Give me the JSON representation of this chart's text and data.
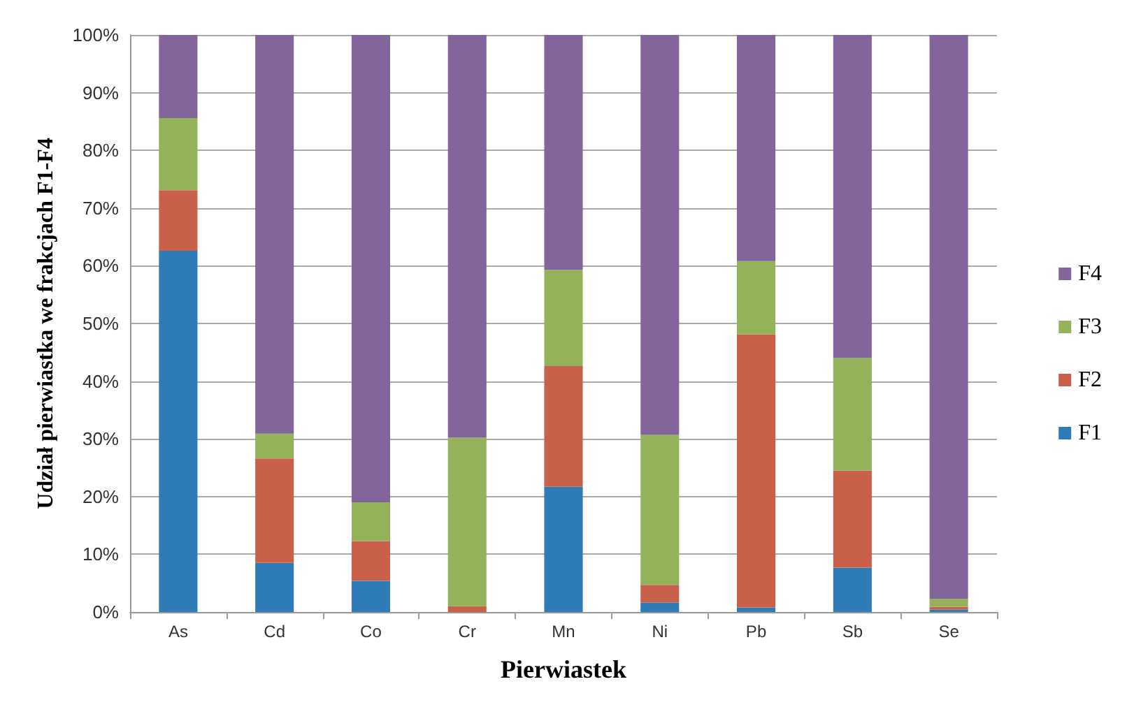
{
  "chart_data": {
    "type": "bar",
    "stacked": true,
    "xlabel": "Pierwiastek",
    "ylabel": "Udział pierwiastka we frakcjach F1-F4",
    "categories": [
      "As",
      "Cd",
      "Co",
      "Cr",
      "Mn",
      "Ni",
      "Pb",
      "Sb",
      "Se"
    ],
    "series": [
      {
        "name": "F1",
        "color": "#2e7bb6",
        "values": [
          62.6,
          8.5,
          5.4,
          0,
          21.7,
          1.6,
          0.8,
          7.7,
          0.4
        ]
      },
      {
        "name": "F2",
        "color": "#c9604a",
        "values": [
          10.5,
          18.1,
          6.9,
          1.0,
          20.9,
          3.1,
          47.3,
          16.8,
          0.5
        ]
      },
      {
        "name": "F3",
        "color": "#93b259",
        "values": [
          12.5,
          4.3,
          6.7,
          29.2,
          16.7,
          26.0,
          12.7,
          19.5,
          1.4
        ]
      },
      {
        "name": "F4",
        "color": "#82659b",
        "values": [
          14.4,
          69.1,
          81.0,
          69.8,
          40.7,
          69.3,
          39.2,
          56.0,
          97.7
        ]
      }
    ],
    "ylim": [
      0,
      100
    ],
    "yticks": [
      {
        "value": 0,
        "label": "0%"
      },
      {
        "value": 10,
        "label": "10%"
      },
      {
        "value": 20,
        "label": "20%"
      },
      {
        "value": 30,
        "label": "30%"
      },
      {
        "value": 40,
        "label": "40%"
      },
      {
        "value": 50,
        "label": "50%"
      },
      {
        "value": 60,
        "label": "60%"
      },
      {
        "value": 70,
        "label": "70%"
      },
      {
        "value": 80,
        "label": "80%"
      },
      {
        "value": 90,
        "label": "90%"
      },
      {
        "value": 100,
        "label": "100%"
      }
    ],
    "grid": "y",
    "legend": "right"
  }
}
